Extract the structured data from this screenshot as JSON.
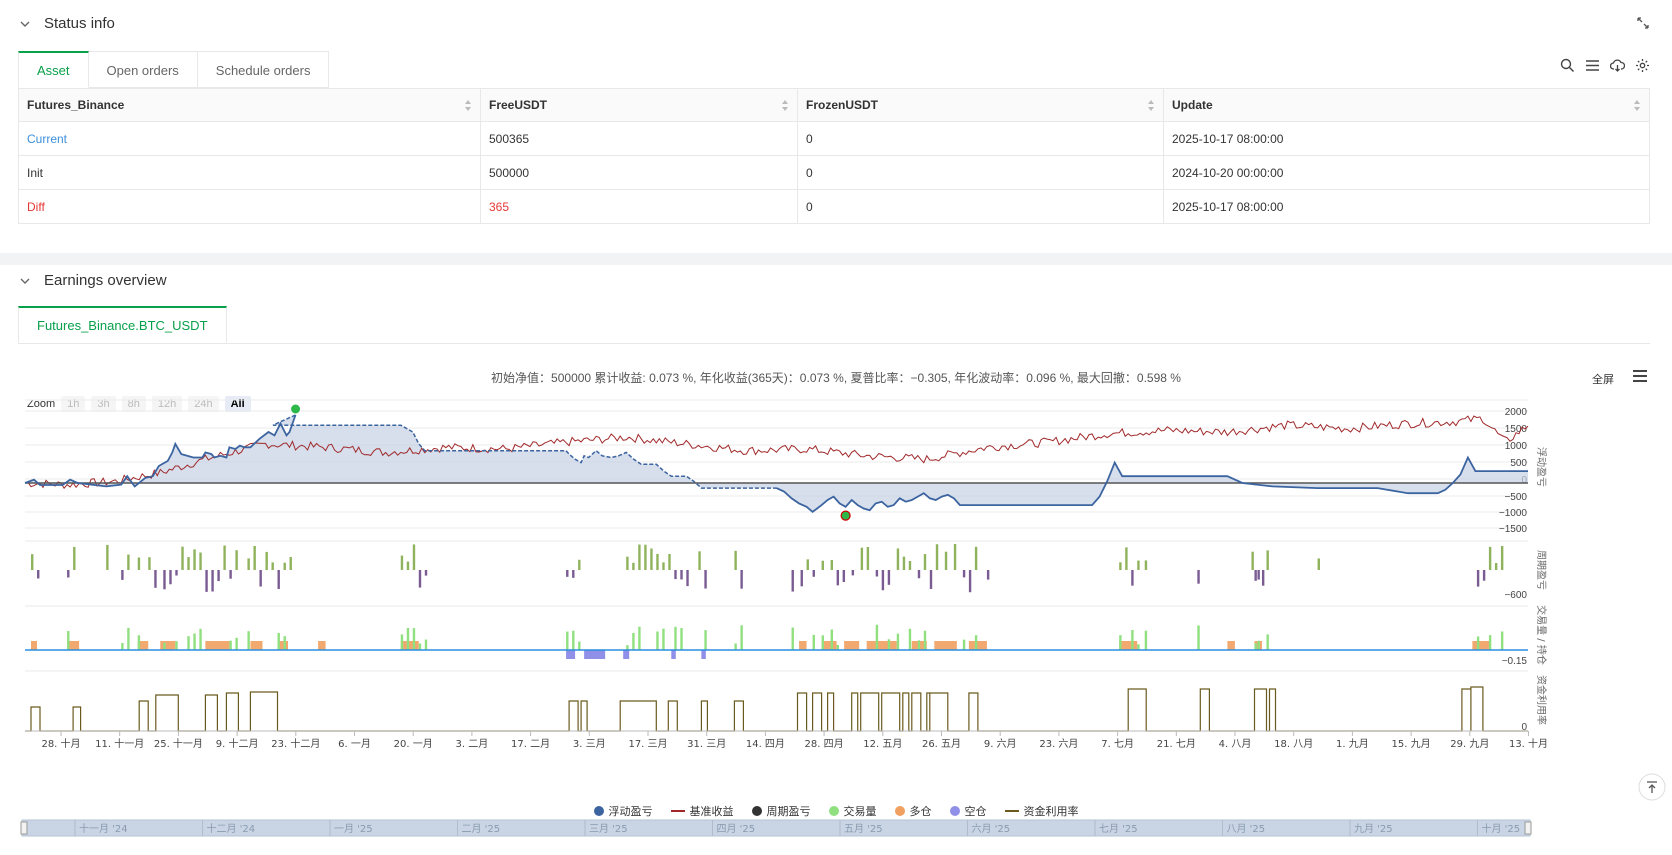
{
  "status": {
    "title": "Status info",
    "tabs": [
      "Asset",
      "Open orders",
      "Schedule orders"
    ],
    "table": {
      "headers": [
        "Futures_Binance",
        "FreeUSDT",
        "FrozenUSDT",
        "Update"
      ],
      "rows": [
        {
          "name": "Current",
          "free": "500365",
          "frozen": "0",
          "update": "2025-10-17 08:00:00",
          "color": "#3b8fdb"
        },
        {
          "name": "Init",
          "free": "500000",
          "frozen": "0",
          "update": "2024-10-20 00:00:00",
          "color": "#333333"
        },
        {
          "name": "Diff",
          "free": "365",
          "frozen": "0",
          "update": "2025-10-17 08:00:00",
          "color": "#e53935"
        }
      ]
    }
  },
  "earnings": {
    "title": "Earnings overview",
    "tab": "Futures_Binance.BTC_USDT",
    "summary": "初始净值：500000 累计收益: 0.073 %, 年化收益(365天)：0.073 %, 夏普比率：−0.305, 年化波动率：0.096 %, 最大回撤：0.598 %",
    "fullscreen": "全屏",
    "zoom": {
      "label": "Zoom",
      "buttons": [
        "1h",
        "3h",
        "8h",
        "12h",
        "24h",
        "All"
      ],
      "active": "All"
    }
  },
  "chart_data": {
    "type": "line",
    "x_ticks": [
      "28. 十月",
      "11. 十一月",
      "25. 十一月",
      "9. 十二月",
      "23. 十二月",
      "6. 一月",
      "20. 一月",
      "3. 二月",
      "17. 二月",
      "3. 三月",
      "17. 三月",
      "31. 三月",
      "14. 四月",
      "28. 四月",
      "12. 五月",
      "26. 五月",
      "9. 六月",
      "23. 六月",
      "7. 七月",
      "21. 七月",
      "4. 八月",
      "18. 八月",
      "1. 九月",
      "15. 九月",
      "29. 九月",
      "13. 十月"
    ],
    "navigator_ticks": [
      "十一月 '24",
      "十二月 '24",
      "一月 '25",
      "二月 '25",
      "三月 '25",
      "四月 '25",
      "五月 '25",
      "六月 '25",
      "七月 '25",
      "八月 '25",
      "九月 '25",
      "十月 '25"
    ],
    "panels": [
      {
        "name": "浮动盈亏",
        "y_ticks": [
          "2000",
          "1500",
          "1000",
          "500",
          "0",
          "−500",
          "−1000",
          "−1500"
        ],
        "ylim": [
          -1500,
          2000
        ]
      },
      {
        "name": "周期盈亏",
        "y_ticks": [
          "−600"
        ]
      },
      {
        "name": "交易量 / 持仓",
        "y_ticks": [
          "−0.15"
        ]
      },
      {
        "name": "资金利用率",
        "y_ticks": [
          "0"
        ]
      }
    ],
    "series": [
      {
        "name": "浮动盈亏",
        "color": "#3c64a0"
      },
      {
        "name": "基准收益",
        "color": "#a0282a"
      },
      {
        "name": "周期盈亏",
        "color": "#333333"
      },
      {
        "name": "交易量",
        "color": "#90e080"
      },
      {
        "name": "多仓",
        "color": "#f0a060"
      },
      {
        "name": "空仓",
        "color": "#9090e8"
      },
      {
        "name": "资金利用率",
        "color": "#6b5a1e"
      }
    ]
  }
}
